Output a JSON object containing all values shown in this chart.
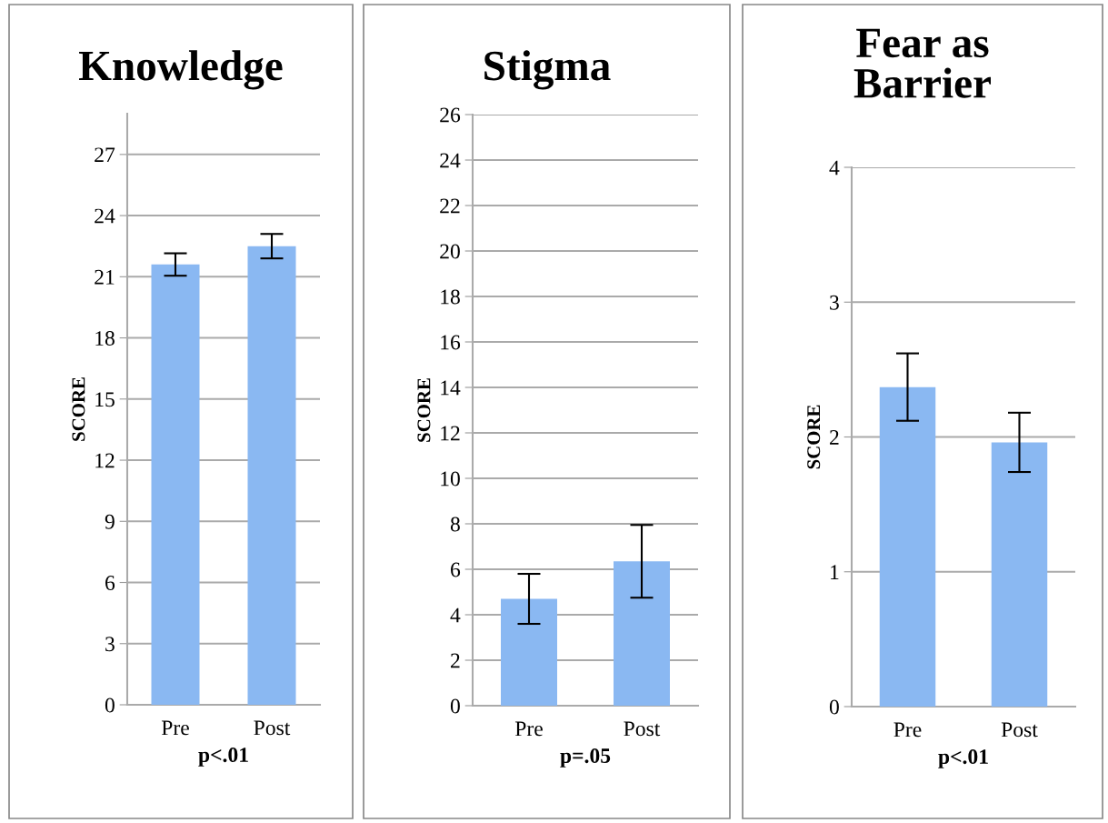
{
  "chart_data": [
    {
      "type": "bar",
      "title": "Knowledge",
      "ylabel": "SCORE",
      "xlabel": "p<.01",
      "categories": [
        "Pre",
        "Post"
      ],
      "values": [
        21.6,
        22.5
      ],
      "errors": [
        0.55,
        0.6
      ],
      "color": "#8ab8f2",
      "ylim": [
        0,
        29
      ],
      "yticks": [
        0,
        3,
        6,
        9,
        12,
        15,
        18,
        21,
        24,
        27
      ],
      "grid": "y"
    },
    {
      "type": "bar",
      "title": "Stigma",
      "ylabel": "SCORE",
      "xlabel": "p=.05",
      "categories": [
        "Pre",
        "Post"
      ],
      "values": [
        4.7,
        6.35
      ],
      "errors": [
        1.1,
        1.6
      ],
      "color": "#8ab8f2",
      "ylim": [
        0,
        26
      ],
      "yticks": [
        0,
        2,
        4,
        6,
        8,
        10,
        12,
        14,
        16,
        18,
        20,
        22,
        24,
        26
      ],
      "grid": "y"
    },
    {
      "type": "bar",
      "title": "Fear as\nBarrier",
      "ylabel": "SCORE",
      "xlabel": "p<.01",
      "categories": [
        "Pre",
        "Post"
      ],
      "values": [
        2.37,
        1.96
      ],
      "errors": [
        0.25,
        0.22
      ],
      "color": "#8ab8f2",
      "ylim": [
        0,
        4
      ],
      "yticks": [
        0,
        1,
        2,
        3,
        4
      ],
      "grid": "y"
    }
  ]
}
